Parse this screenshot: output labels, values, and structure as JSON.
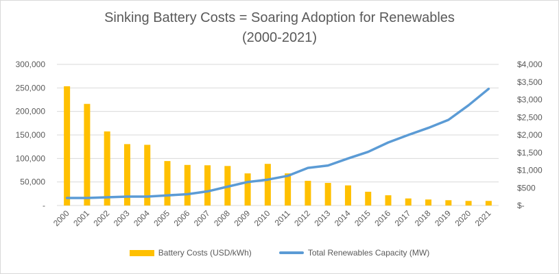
{
  "colors": {
    "bars": "#FFC000",
    "line": "#5B9BD5",
    "grid": "#d9d9d9",
    "text": "#595959"
  },
  "chart_data": {
    "type": "bar+line",
    "title_line1": "Sinking Battery Costs = Soaring Adoption for Renewables",
    "title_line2": "(2000-2021)",
    "categories": [
      "2000",
      "2001",
      "2002",
      "2003",
      "2004",
      "2005",
      "2006",
      "2007",
      "2008",
      "2009",
      "2010",
      "2011",
      "2012",
      "2013",
      "2014",
      "2015",
      "2016",
      "2017",
      "2018",
      "2019",
      "2020",
      "2021"
    ],
    "series": [
      {
        "name": "Battery Costs (USD/kWh)",
        "type": "bar",
        "axis": "right",
        "values": [
          3380,
          2880,
          2100,
          1740,
          1720,
          1260,
          1150,
          1140,
          1120,
          910,
          1180,
          910,
          700,
          640,
          570,
          390,
          290,
          200,
          170,
          150,
          130,
          130
        ]
      },
      {
        "name": "Total Renewables Capacity (MW)",
        "type": "line",
        "axis": "left",
        "values": [
          16000,
          16000,
          17500,
          19000,
          19000,
          21500,
          24000,
          30000,
          40000,
          50000,
          55000,
          63000,
          80000,
          85000,
          100000,
          114000,
          134000,
          150000,
          165000,
          182000,
          213000,
          248000
        ]
      }
    ],
    "left_axis": {
      "ylim": [
        0,
        300000
      ],
      "ticks": [
        0,
        50000,
        100000,
        150000,
        200000,
        250000,
        300000
      ],
      "tick_labels": [
        "-",
        "50,000",
        "100,000",
        "150,000",
        "200,000",
        "250,000",
        "300,000"
      ]
    },
    "right_axis": {
      "ylim": [
        0,
        4000
      ],
      "ticks": [
        0,
        500,
        1000,
        1500,
        2000,
        2500,
        3000,
        3500,
        4000
      ],
      "tick_labels": [
        "$-",
        "$500",
        "$1,000",
        "$1,500",
        "$2,000",
        "$2,500",
        "$3,000",
        "$3,500",
        "$4,000"
      ]
    },
    "grid": true,
    "legend": "bottom"
  }
}
